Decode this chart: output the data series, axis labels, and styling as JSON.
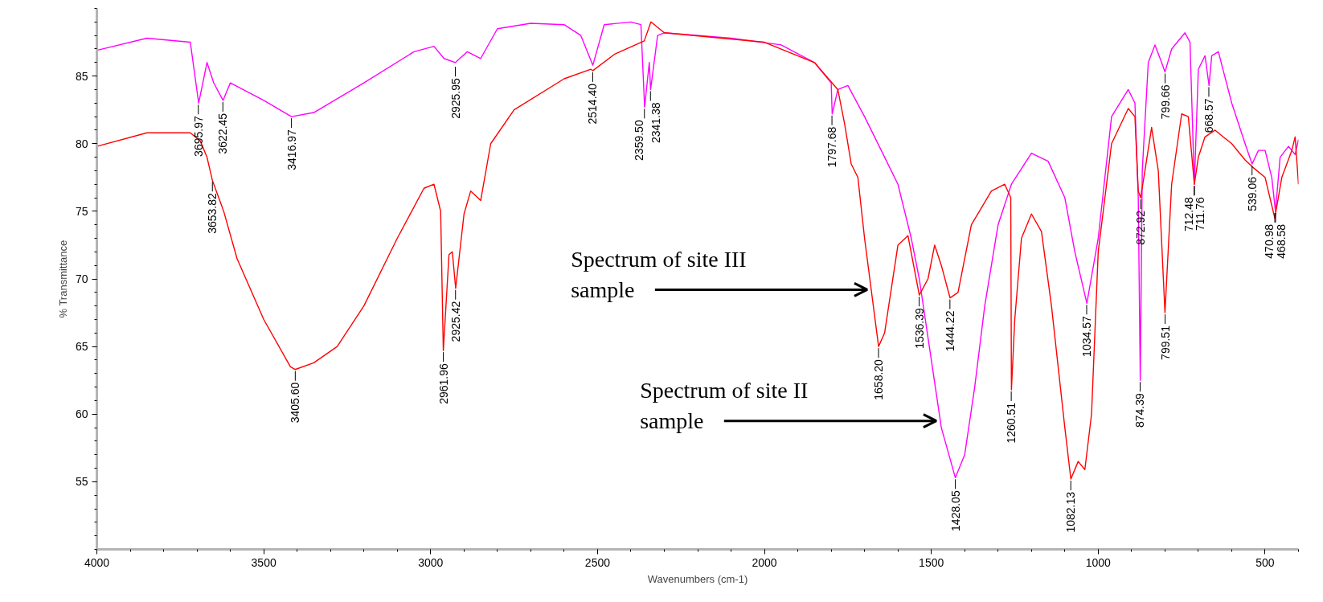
{
  "chart_data": {
    "type": "line",
    "xlabel": "Wavenumbers (cm-1)",
    "ylabel": "% Transmittance",
    "xlim": [
      4000,
      400
    ],
    "ylim": [
      50,
      90
    ],
    "xticks": [
      4000,
      3500,
      3000,
      2500,
      2000,
      1500,
      1000,
      500
    ],
    "yticks": [
      55,
      60,
      65,
      70,
      75,
      80,
      85
    ],
    "grid": false,
    "series": [
      {
        "color": "#ff00ff",
        "x": [
          4000,
          3850,
          3720,
          3695,
          3670,
          3650,
          3622,
          3600,
          3500,
          3417,
          3350,
          3200,
          3050,
          2990,
          2960,
          2926,
          2890,
          2850,
          2800,
          2700,
          2600,
          2550,
          2514,
          2480,
          2400,
          2370,
          2359,
          2345,
          2341,
          2320,
          2300,
          2100,
          1950,
          1850,
          1800,
          1797,
          1780,
          1750,
          1700,
          1650,
          1600,
          1560,
          1536,
          1500,
          1470,
          1428,
          1400,
          1370,
          1340,
          1300,
          1260,
          1200,
          1150,
          1100,
          1070,
          1034,
          1000,
          960,
          930,
          910,
          890,
          880,
          874,
          868,
          850,
          830,
          810,
          800,
          780,
          740,
          725,
          712,
          700,
          680,
          668,
          660,
          640,
          600,
          560,
          539,
          520,
          500,
          480,
          469,
          455,
          430,
          410,
          400
        ],
        "values": [
          86.9,
          87.8,
          87.5,
          83.0,
          86.0,
          84.5,
          83.2,
          84.5,
          83.2,
          82.0,
          82.3,
          84.5,
          86.8,
          87.2,
          86.3,
          86.0,
          86.8,
          86.3,
          88.5,
          88.9,
          88.8,
          88.0,
          85.8,
          88.8,
          89.0,
          88.8,
          82.7,
          86.0,
          84.0,
          88.0,
          88.2,
          87.8,
          87.3,
          86.0,
          84.5,
          82.2,
          84.0,
          84.3,
          82.0,
          79.5,
          77.0,
          73.0,
          70.0,
          64.0,
          59.0,
          55.3,
          57.0,
          62.0,
          68.0,
          74.0,
          77.0,
          79.3,
          78.7,
          76.0,
          72.0,
          68.2,
          73.0,
          82.0,
          83.2,
          84.0,
          83.0,
          76.0,
          62.5,
          78.0,
          86.0,
          87.3,
          86.0,
          85.3,
          87.0,
          88.2,
          87.5,
          77.0,
          85.5,
          86.5,
          84.3,
          86.5,
          86.8,
          83.0,
          80.0,
          78.5,
          79.5,
          79.5,
          77.5,
          75.0,
          79.0,
          79.8,
          79.2,
          80.3
        ]
      },
      {
        "color": "#ff0000",
        "x": [
          4000,
          3850,
          3720,
          3690,
          3670,
          3654,
          3620,
          3580,
          3500,
          3420,
          3406,
          3350,
          3280,
          3200,
          3100,
          3020,
          2990,
          2970,
          2962,
          2945,
          2935,
          2925,
          2900,
          2880,
          2850,
          2820,
          2750,
          2600,
          2520,
          2514,
          2450,
          2360,
          2340,
          2300,
          2000,
          1850,
          1780,
          1760,
          1740,
          1720,
          1700,
          1658,
          1640,
          1600,
          1570,
          1536,
          1510,
          1490,
          1470,
          1444,
          1420,
          1380,
          1320,
          1280,
          1262,
          1260,
          1250,
          1230,
          1200,
          1170,
          1140,
          1100,
          1082,
          1060,
          1040,
          1020,
          1000,
          960,
          910,
          890,
          880,
          873,
          860,
          840,
          820,
          800,
          780,
          750,
          730,
          712,
          700,
          680,
          650,
          600,
          560,
          539,
          500,
          471,
          450,
          420,
          410,
          400
        ],
        "values": [
          79.8,
          80.8,
          80.8,
          80.2,
          79.0,
          77.3,
          75.0,
          71.5,
          67.0,
          63.5,
          63.3,
          63.8,
          65.0,
          68.0,
          73.0,
          76.7,
          77.0,
          75.0,
          64.7,
          71.8,
          72.0,
          69.3,
          74.8,
          76.5,
          75.8,
          80.0,
          82.5,
          84.8,
          85.5,
          85.4,
          86.6,
          87.6,
          89.0,
          88.2,
          87.5,
          86.0,
          84.0,
          81.5,
          78.5,
          77.5,
          73.0,
          65.0,
          66.0,
          72.5,
          73.2,
          68.8,
          70.0,
          72.5,
          71.0,
          68.6,
          69.0,
          74.0,
          76.5,
          77.0,
          76.0,
          61.8,
          67.0,
          73.0,
          74.8,
          73.5,
          68.0,
          59.0,
          55.2,
          56.5,
          55.9,
          60.0,
          72.0,
          80.0,
          82.6,
          82.0,
          76.5,
          76.0,
          78.0,
          81.2,
          78.0,
          67.5,
          77.0,
          82.2,
          82.0,
          77.0,
          79.0,
          80.5,
          81.0,
          80.0,
          78.8,
          78.3,
          77.5,
          74.5,
          77.5,
          79.5,
          80.5,
          77.0
        ]
      }
    ],
    "annotations": [
      {
        "text": "3695.97",
        "x": 3695.97,
        "y": 83.0
      },
      {
        "text": "3653.82",
        "x": 3653.82,
        "y": 77.3
      },
      {
        "text": "3622.45",
        "x": 3622.45,
        "y": 83.2
      },
      {
        "text": "3416.97",
        "x": 3416.97,
        "y": 82.0
      },
      {
        "text": "3405.60",
        "x": 3405.6,
        "y": 63.3
      },
      {
        "text": "2961.96",
        "x": 2961.96,
        "y": 64.7
      },
      {
        "text": "2925.95",
        "x": 2925.95,
        "y": 85.8
      },
      {
        "text": "2925.42",
        "x": 2925.42,
        "y": 69.3
      },
      {
        "text": "2514.40",
        "x": 2514.4,
        "y": 85.4
      },
      {
        "text": "2359.50",
        "x": 2359.5,
        "y": 82.7
      },
      {
        "text": "2341.38",
        "x": 2341.38,
        "y": 84.0
      },
      {
        "text": "1797.68",
        "x": 1797.68,
        "y": 82.2
      },
      {
        "text": "1658.20",
        "x": 1658.2,
        "y": 65.0
      },
      {
        "text": "1536.39",
        "x": 1536.39,
        "y": 68.8
      },
      {
        "text": "1444.22",
        "x": 1444.22,
        "y": 68.6
      },
      {
        "text": "1428.05",
        "x": 1428.05,
        "y": 55.3
      },
      {
        "text": "1260.51",
        "x": 1260.51,
        "y": 61.8
      },
      {
        "text": "1082.13",
        "x": 1082.13,
        "y": 55.2
      },
      {
        "text": "1034.57",
        "x": 1034.57,
        "y": 68.2
      },
      {
        "text": "874.39",
        "x": 874.39,
        "y": 62.5
      },
      {
        "text": "872.92",
        "x": 872.92,
        "y": 76.0
      },
      {
        "text": "799.66",
        "x": 799.66,
        "y": 85.3
      },
      {
        "text": "799.51",
        "x": 799.51,
        "y": 67.5
      },
      {
        "text": "712.48",
        "x": 712.48,
        "y": 77.0
      },
      {
        "text": "711.76",
        "x": 711.76,
        "y": 77.0
      },
      {
        "text": "668.57",
        "x": 668.57,
        "y": 84.3
      },
      {
        "text": "539.06",
        "x": 539.06,
        "y": 78.5
      },
      {
        "text": "470.98",
        "x": 470.98,
        "y": 75.0
      },
      {
        "text": "468.58",
        "x": 468.58,
        "y": 75.0
      },
      {
        "text": "Spectrum of site III sample",
        "x": 1680,
        "y": 69.2
      },
      {
        "text": "Spectrum of site II sample",
        "x": 1473,
        "y": 59.5
      }
    ]
  }
}
